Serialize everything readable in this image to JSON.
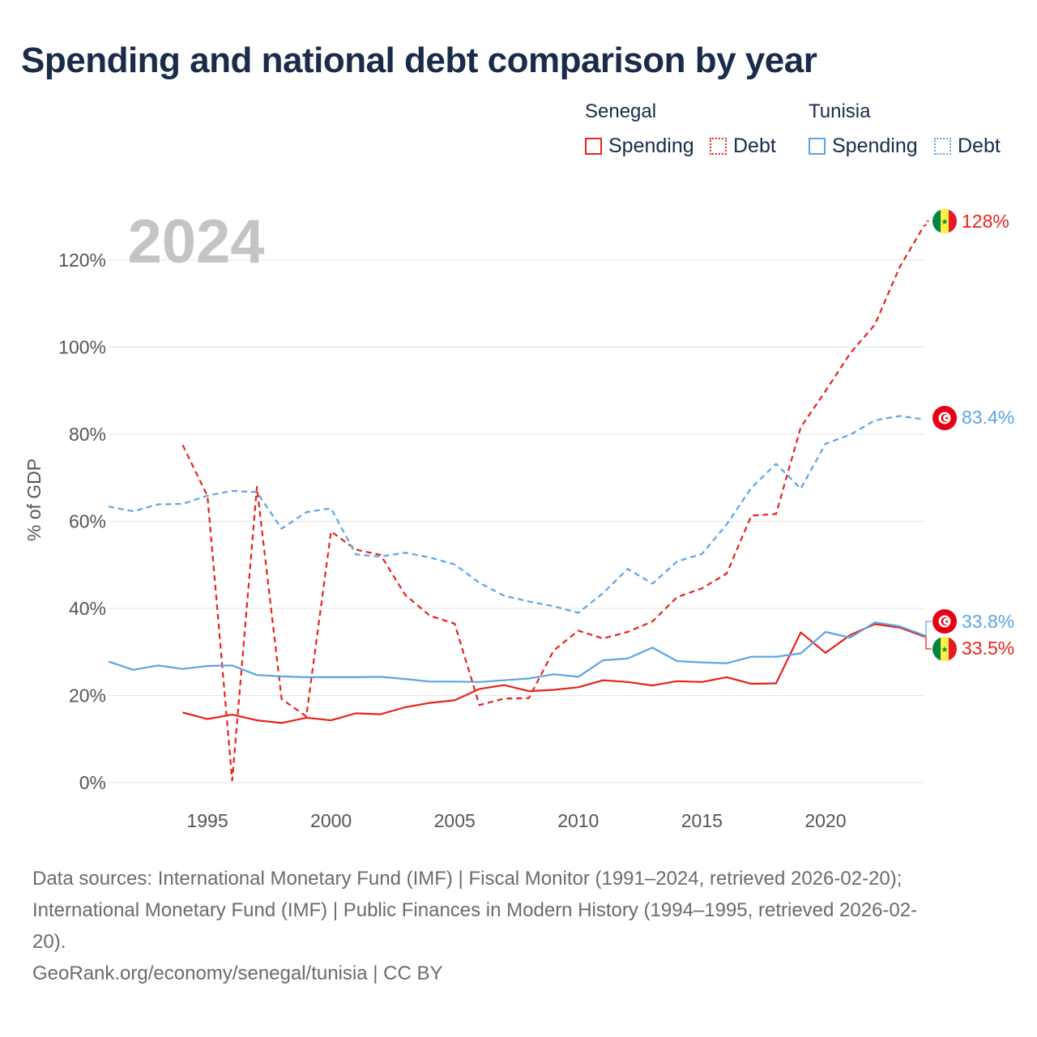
{
  "title": "Spending and national debt comparison by year",
  "legend": {
    "senegal": {
      "group": "Senegal",
      "spending": "Spending",
      "debt": "Debt",
      "color": "#e8221b"
    },
    "tunisia": {
      "group": "Tunisia",
      "spending": "Spending",
      "debt": "Debt",
      "color": "#5ba4e6"
    }
  },
  "year_watermark": "2024",
  "end_labels": {
    "senegal_debt": "128%",
    "tunisia_debt": "83.4%",
    "tunisia_spending": "33.8%",
    "senegal_spending": "33.5%"
  },
  "chart_data": {
    "type": "line",
    "title": "Spending and national debt comparison by year",
    "xlabel": "",
    "ylabel": "% of GDP",
    "xlim": [
      1991,
      2024
    ],
    "ylim": [
      0,
      130
    ],
    "x_ticks": [
      1995,
      2000,
      2005,
      2010,
      2015,
      2020
    ],
    "y_ticks": [
      0,
      20,
      40,
      60,
      80,
      100,
      120
    ],
    "y_tick_labels": [
      "0%",
      "20%",
      "40%",
      "60%",
      "80%",
      "100%",
      "120%"
    ],
    "grid": true,
    "series": [
      {
        "name": "Senegal Spending",
        "country": "Senegal",
        "style": "solid",
        "color": "#e8221b",
        "x": [
          1994,
          1995,
          1996,
          1997,
          1998,
          1999,
          2000,
          2001,
          2002,
          2003,
          2004,
          2005,
          2006,
          2007,
          2008,
          2009,
          2010,
          2011,
          2012,
          2013,
          2014,
          2015,
          2016,
          2017,
          2018,
          2019,
          2020,
          2021,
          2022,
          2023,
          2024
        ],
        "values": [
          16.1,
          14.6,
          15.6,
          14.3,
          13.7,
          14.9,
          14.3,
          15.9,
          15.7,
          17.3,
          18.3,
          18.9,
          21.5,
          22.4,
          21.0,
          21.3,
          21.9,
          23.5,
          23.1,
          22.3,
          23.3,
          23.1,
          24.2,
          22.7,
          22.8,
          34.5,
          29.8,
          33.9,
          36.4,
          35.6,
          33.5
        ]
      },
      {
        "name": "Senegal Debt",
        "country": "Senegal",
        "style": "dashed",
        "color": "#e8221b",
        "x": [
          1994,
          1995,
          1996,
          1997,
          1998,
          1999,
          2000,
          2001,
          2002,
          2003,
          2004,
          2005,
          2006,
          2007,
          2008,
          2009,
          2010,
          2011,
          2012,
          2013,
          2014,
          2015,
          2016,
          2017,
          2018,
          2019,
          2020,
          2021,
          2022,
          2023,
          2024
        ],
        "values": [
          77.5,
          65.8,
          0.5,
          67.9,
          19.2,
          15.2,
          57.7,
          53.5,
          52.3,
          43.1,
          38.3,
          36.5,
          17.8,
          19.3,
          19.4,
          30.3,
          34.9,
          33.1,
          34.6,
          37.0,
          42.6,
          44.6,
          48.0,
          61.3,
          61.7,
          81.6,
          89.9,
          98.6,
          105.2,
          118.4,
          128.0
        ]
      },
      {
        "name": "Tunisia Spending",
        "country": "Tunisia",
        "style": "solid",
        "color": "#5ba4e6",
        "x": [
          1991,
          1992,
          1993,
          1994,
          1995,
          1996,
          1997,
          1998,
          1999,
          2000,
          2001,
          2002,
          2003,
          2004,
          2005,
          2006,
          2007,
          2008,
          2009,
          2010,
          2011,
          2012,
          2013,
          2014,
          2015,
          2016,
          2017,
          2018,
          2019,
          2020,
          2021,
          2022,
          2023,
          2024
        ],
        "values": [
          27.8,
          25.9,
          26.9,
          26.1,
          26.8,
          26.9,
          24.7,
          24.4,
          24.2,
          24.2,
          24.2,
          24.3,
          23.8,
          23.2,
          23.2,
          23.1,
          23.5,
          23.9,
          24.9,
          24.3,
          28.1,
          28.5,
          31.0,
          27.9,
          27.6,
          27.4,
          28.9,
          28.9,
          29.7,
          34.6,
          33.3,
          36.8,
          35.9,
          33.8
        ]
      },
      {
        "name": "Tunisia Debt",
        "country": "Tunisia",
        "style": "dashed",
        "color": "#5ba4e6",
        "x": [
          1991,
          1992,
          1993,
          1994,
          1995,
          1996,
          1997,
          1998,
          1999,
          2000,
          2001,
          2002,
          2003,
          2004,
          2005,
          2006,
          2007,
          2008,
          2009,
          2010,
          2011,
          2012,
          2013,
          2014,
          2015,
          2016,
          2017,
          2018,
          2019,
          2020,
          2021,
          2022,
          2023,
          2024
        ],
        "values": [
          63.4,
          62.3,
          63.9,
          64.0,
          65.9,
          67.0,
          66.7,
          58.3,
          62.1,
          63.0,
          52.4,
          51.9,
          52.8,
          51.7,
          50.1,
          45.9,
          42.9,
          41.6,
          40.5,
          39.0,
          43.5,
          49.1,
          45.7,
          50.8,
          52.5,
          59.3,
          67.7,
          73.2,
          67.5,
          77.8,
          79.9,
          83.2,
          84.2,
          83.4
        ]
      }
    ]
  },
  "sources": {
    "line1": "Data sources: International Monetary Fund (IMF) | Fiscal Monitor (1991–2024, retrieved 2026-02-20);",
    "line2": "International Monetary Fund (IMF) | Public Finances in Modern History (1994–1995, retrieved 2026-02-",
    "line3": "20).",
    "credit": "GeoRank.org/economy/senegal/tunisia | CC BY"
  }
}
